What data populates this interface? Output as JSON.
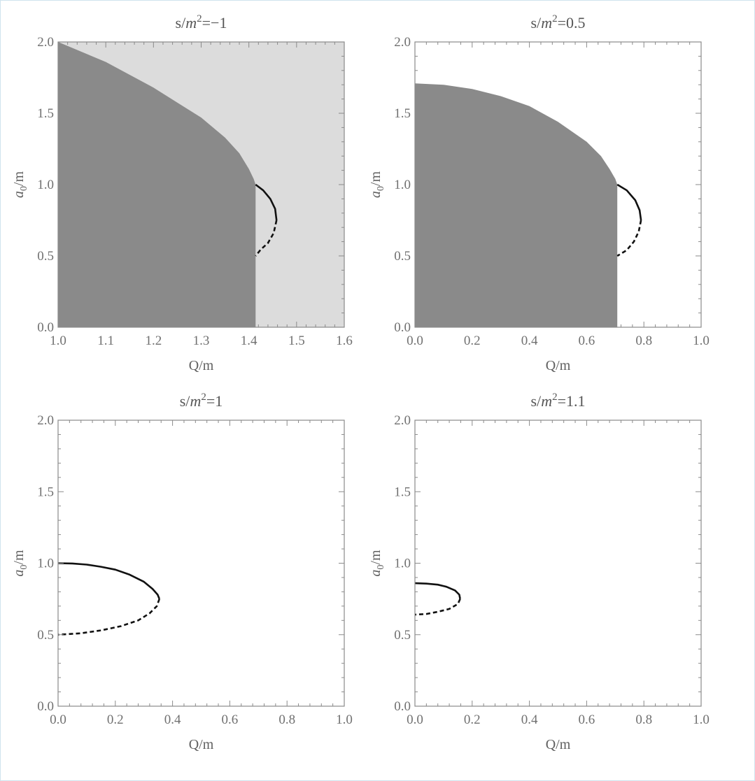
{
  "figure": {
    "colors": {
      "frame": "#8a8a8a",
      "dark_region": "#8a8a8a",
      "light_region": "#dcdcdc",
      "curve": "#111111",
      "text": "#606060"
    }
  },
  "chart_data": [
    {
      "type": "line",
      "title_parts": {
        "pre": "s/",
        "var": "m",
        "sup": "2",
        "post": "=−1"
      },
      "xlabel": "Q/m",
      "ylabel": {
        "var": "a",
        "sub": "0",
        "post": "/m"
      },
      "xlim": [
        1.0,
        1.6
      ],
      "ylim": [
        0.0,
        2.0
      ],
      "xticks": [
        "1.0",
        "1.1",
        "1.2",
        "1.3",
        "1.4",
        "1.5",
        "1.6"
      ],
      "yticks": [
        "0.0",
        "0.5",
        "1.0",
        "1.5",
        "2.0"
      ],
      "background_region": "light",
      "region": {
        "name": "dark region",
        "boundary": [
          [
            1.0,
            2.0
          ],
          [
            1.1,
            1.86
          ],
          [
            1.2,
            1.68
          ],
          [
            1.3,
            1.47
          ],
          [
            1.35,
            1.33
          ],
          [
            1.38,
            1.22
          ],
          [
            1.4,
            1.11
          ],
          [
            1.41,
            1.04
          ],
          [
            1.4142,
            1.0
          ],
          [
            1.4142,
            0.0
          ]
        ]
      },
      "series": [
        {
          "style": "solid",
          "points": [
            [
              1.4142,
              1.0
            ],
            [
              1.43,
              0.96
            ],
            [
              1.445,
              0.9
            ],
            [
              1.455,
              0.83
            ],
            [
              1.458,
              0.75
            ]
          ]
        },
        {
          "style": "dashed",
          "points": [
            [
              1.458,
              0.75
            ],
            [
              1.452,
              0.66
            ],
            [
              1.44,
              0.59
            ],
            [
              1.425,
              0.545
            ],
            [
              1.4142,
              0.5
            ]
          ]
        }
      ]
    },
    {
      "type": "line",
      "title_parts": {
        "pre": "s/",
        "var": "m",
        "sup": "2",
        "post": "=0.5"
      },
      "xlabel": "Q/m",
      "ylabel": {
        "var": "a",
        "sub": "0",
        "post": "/m"
      },
      "xlim": [
        0.0,
        1.0
      ],
      "ylim": [
        0.0,
        2.0
      ],
      "xticks": [
        "0.0",
        "0.2",
        "0.4",
        "0.6",
        "0.8",
        "1.0"
      ],
      "yticks": [
        "0.0",
        "0.5",
        "1.0",
        "1.5",
        "2.0"
      ],
      "background_region": "none",
      "region": {
        "name": "dark region",
        "boundary": [
          [
            0.0,
            1.71
          ],
          [
            0.1,
            1.7
          ],
          [
            0.2,
            1.67
          ],
          [
            0.3,
            1.62
          ],
          [
            0.4,
            1.55
          ],
          [
            0.5,
            1.44
          ],
          [
            0.6,
            1.3
          ],
          [
            0.65,
            1.2
          ],
          [
            0.68,
            1.11
          ],
          [
            0.7,
            1.04
          ],
          [
            0.707,
            1.0
          ],
          [
            0.707,
            0.0
          ]
        ]
      },
      "series": [
        {
          "style": "solid",
          "points": [
            [
              0.707,
              1.0
            ],
            [
              0.74,
              0.96
            ],
            [
              0.77,
              0.89
            ],
            [
              0.785,
              0.82
            ],
            [
              0.79,
              0.75
            ]
          ]
        },
        {
          "style": "dashed",
          "points": [
            [
              0.79,
              0.75
            ],
            [
              0.782,
              0.67
            ],
            [
              0.765,
              0.6
            ],
            [
              0.74,
              0.54
            ],
            [
              0.707,
              0.5
            ]
          ]
        }
      ]
    },
    {
      "type": "line",
      "title_parts": {
        "pre": "s/",
        "var": "m",
        "sup": "2",
        "post": "=1"
      },
      "xlabel": "Q/m",
      "ylabel": {
        "var": "a",
        "sub": "0",
        "post": "/m"
      },
      "xlim": [
        0.0,
        1.0
      ],
      "ylim": [
        0.0,
        2.0
      ],
      "xticks": [
        "0.0",
        "0.2",
        "0.4",
        "0.6",
        "0.8",
        "1.0"
      ],
      "yticks": [
        "0.0",
        "0.5",
        "1.0",
        "1.5",
        "2.0"
      ],
      "background_region": "none",
      "region": null,
      "series": [
        {
          "style": "solid",
          "points": [
            [
              0.0,
              1.0
            ],
            [
              0.05,
              0.998
            ],
            [
              0.1,
              0.99
            ],
            [
              0.15,
              0.975
            ],
            [
              0.2,
              0.955
            ],
            [
              0.25,
              0.92
            ],
            [
              0.3,
              0.87
            ],
            [
              0.33,
              0.82
            ],
            [
              0.348,
              0.78
            ],
            [
              0.354,
              0.75
            ]
          ]
        },
        {
          "style": "dashed",
          "points": [
            [
              0.354,
              0.75
            ],
            [
              0.345,
              0.7
            ],
            [
              0.32,
              0.65
            ],
            [
              0.28,
              0.6
            ],
            [
              0.22,
              0.56
            ],
            [
              0.15,
              0.53
            ],
            [
              0.08,
              0.51
            ],
            [
              0.0,
              0.5
            ]
          ]
        }
      ]
    },
    {
      "type": "line",
      "title_parts": {
        "pre": "s/",
        "var": "m",
        "sup": "2",
        "post": "=1.1"
      },
      "xlabel": "Q/m",
      "ylabel": {
        "var": "a",
        "sub": "0",
        "post": "/m"
      },
      "xlim": [
        0.0,
        1.0
      ],
      "ylim": [
        0.0,
        2.0
      ],
      "xticks": [
        "0.0",
        "0.2",
        "0.4",
        "0.6",
        "0.8",
        "1.0"
      ],
      "yticks": [
        "0.0",
        "0.5",
        "1.0",
        "1.5",
        "2.0"
      ],
      "background_region": "none",
      "region": null,
      "series": [
        {
          "style": "solid",
          "points": [
            [
              0.0,
              0.86
            ],
            [
              0.04,
              0.857
            ],
            [
              0.08,
              0.85
            ],
            [
              0.11,
              0.835
            ],
            [
              0.14,
              0.81
            ],
            [
              0.155,
              0.78
            ],
            [
              0.158,
              0.75
            ]
          ]
        },
        {
          "style": "dashed",
          "points": [
            [
              0.158,
              0.75
            ],
            [
              0.15,
              0.715
            ],
            [
              0.12,
              0.68
            ],
            [
              0.08,
              0.66
            ],
            [
              0.04,
              0.645
            ],
            [
              0.0,
              0.64
            ]
          ]
        }
      ]
    }
  ]
}
